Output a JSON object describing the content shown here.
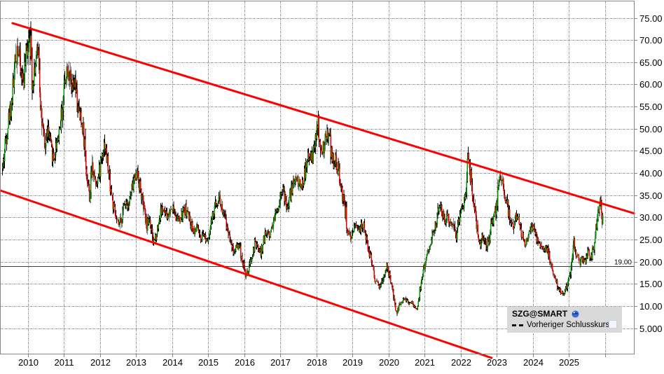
{
  "legend": {
    "title": "SZG@SMART",
    "icon": "globe-icon",
    "items": [
      {
        "label": "Vorheriger Schlusskurs",
        "marker": "dashed-line",
        "checkbox": true
      }
    ],
    "position": "bottom-right"
  },
  "chart_data": {
    "type": "candlestick",
    "title": "SZG@SMART",
    "instrument": "SZG@SMART",
    "interval": "weekly",
    "grid": true,
    "xlim": [
      2009.2,
      2026.8
    ],
    "ylim": [
      0,
      79
    ],
    "y_axis": {
      "side": "right",
      "ticks": [
        {
          "value": 75,
          "label": "75.00"
        },
        {
          "value": 70,
          "label": "70.00"
        },
        {
          "value": 65,
          "label": "65.00"
        },
        {
          "value": 60,
          "label": "60.00"
        },
        {
          "value": 55,
          "label": "55.00"
        },
        {
          "value": 50,
          "label": "50.00"
        },
        {
          "value": 45,
          "label": "45.00"
        },
        {
          "value": 40,
          "label": "40.00"
        },
        {
          "value": 35,
          "label": "35.00"
        },
        {
          "value": 30,
          "label": "30.00"
        },
        {
          "value": 25,
          "label": "25.00"
        },
        {
          "value": 20,
          "label": "20.00"
        },
        {
          "value": 15,
          "label": "15.00"
        },
        {
          "value": 10,
          "label": "10.00"
        },
        {
          "value": 5,
          "label": "5.000"
        }
      ]
    },
    "x_axis": {
      "ticks": [
        {
          "value": 2010,
          "label": "2010"
        },
        {
          "value": 2011,
          "label": "2011"
        },
        {
          "value": 2012,
          "label": "2012"
        },
        {
          "value": 2013,
          "label": "2013"
        },
        {
          "value": 2014,
          "label": "2014"
        },
        {
          "value": 2015,
          "label": "2015"
        },
        {
          "value": 2016,
          "label": "2016"
        },
        {
          "value": 2017,
          "label": "2017"
        },
        {
          "value": 2018,
          "label": "2018"
        },
        {
          "value": 2019,
          "label": "2019"
        },
        {
          "value": 2020,
          "label": "2020"
        },
        {
          "value": 2021,
          "label": "2021"
        },
        {
          "value": 2022,
          "label": "2022"
        },
        {
          "value": 2023,
          "label": "2023"
        },
        {
          "value": 2024,
          "label": "2024"
        },
        {
          "value": 2025,
          "label": "2025"
        },
        {
          "value": 2026,
          "label": ""
        }
      ]
    },
    "prev_close": {
      "value": 19.0,
      "label": "19.00"
    },
    "trendlines": [
      {
        "name": "upper-channel-trendline",
        "t1": 2009.57,
        "p1": 73.8,
        "t2": 2026.81,
        "p2": 30.9
      },
      {
        "name": "lower-channel-trendline",
        "t1": 2009.22,
        "p1": 36.1,
        "t2": 2022.86,
        "p2": -1.7
      }
    ],
    "series": {
      "name": "SZG@SMART",
      "unit": "EUR",
      "anchors": "monthly closing prices, estimated from chart",
      "start_year": 2009,
      "start_month": 4,
      "monthly_closes": [
        41,
        47,
        52,
        56,
        63,
        70,
        63,
        61,
        67,
        73,
        61,
        65,
        68,
        52,
        45,
        50,
        46,
        43,
        47,
        50,
        55,
        63,
        64,
        58,
        60,
        55,
        52,
        50,
        40,
        35,
        42,
        38,
        39,
        44,
        47,
        42,
        37,
        32,
        29,
        28,
        31,
        34,
        33,
        36,
        39,
        40,
        36,
        32,
        28,
        30,
        24,
        26,
        29,
        32,
        31,
        30,
        32,
        32,
        30,
        29,
        31,
        32,
        30,
        28,
        27,
        28,
        24,
        26,
        25,
        27,
        30,
        33,
        35,
        32,
        30,
        27,
        25,
        22,
        24,
        23,
        20,
        17,
        18,
        21,
        24,
        23,
        22,
        25,
        27,
        26,
        29,
        31,
        33,
        37,
        34,
        32,
        36,
        38,
        39,
        37,
        38,
        41,
        44,
        43,
        46,
        51,
        44,
        46,
        49,
        47,
        42,
        43,
        40,
        36,
        32,
        27,
        24,
        27,
        29,
        27,
        29,
        25,
        22,
        20,
        16,
        15,
        14,
        17,
        19,
        16,
        13,
        8,
        10,
        11,
        12,
        10.5,
        11,
        10,
        9.5,
        14,
        17,
        21,
        23,
        26,
        28,
        31,
        33,
        29,
        31,
        28,
        30,
        26,
        30,
        32,
        34,
        47,
        38,
        33,
        28,
        24,
        26,
        23,
        25,
        29,
        31,
        36,
        40,
        36,
        33,
        29,
        27,
        30,
        29,
        26,
        24,
        26,
        28,
        27,
        25,
        24,
        23,
        24,
        21,
        18,
        16,
        14,
        13,
        12.5,
        15,
        18,
        25,
        22,
        19.5,
        21,
        20,
        22,
        21,
        24,
        31,
        33,
        28
      ]
    },
    "colors": {
      "up": "#009b00",
      "down": "#ee0000",
      "wick": "#000000",
      "grid": "#9c9c9c",
      "axis": "#868686",
      "trend": "#ff0000",
      "prev_close_line": "#3a3a3a",
      "legend_bg": "#d9d9d9"
    },
    "render_seed": 42
  }
}
